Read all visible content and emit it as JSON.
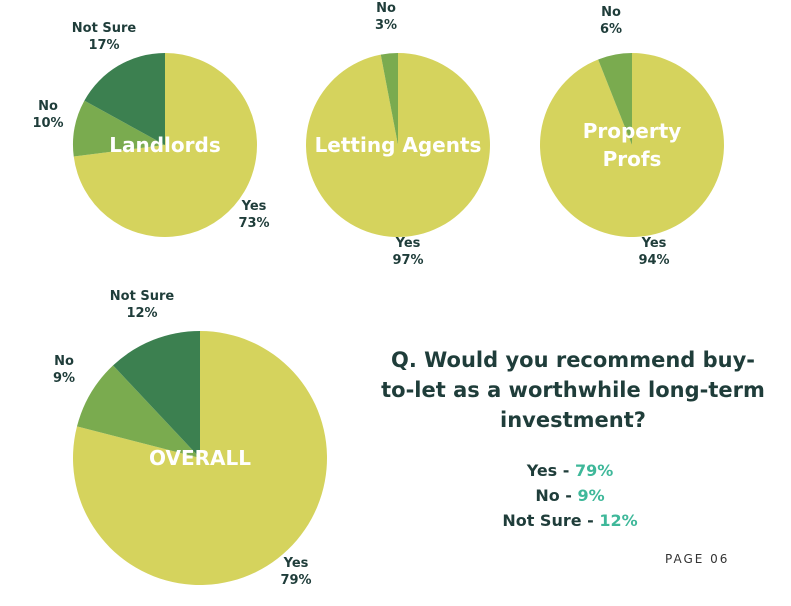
{
  "colors": {
    "yes": "#d5d35d",
    "no": "#7aab4f",
    "not_sure": "#3c8050",
    "text": "#1f3d3a",
    "accent": "#3fb89a"
  },
  "chart_data": [
    {
      "type": "pie",
      "center_label": [
        "Landlords"
      ],
      "slices": [
        {
          "category": "Yes",
          "value": 73,
          "value_label": "73%"
        },
        {
          "category": "No",
          "value": 10,
          "value_label": "10%"
        },
        {
          "category": "Not Sure",
          "value": 17,
          "value_label": "17%"
        }
      ]
    },
    {
      "type": "pie",
      "center_label": [
        "Letting Agents"
      ],
      "slices": [
        {
          "category": "Yes",
          "value": 97,
          "value_label": "97%"
        },
        {
          "category": "No",
          "value": 3,
          "value_label": "3%"
        }
      ]
    },
    {
      "type": "pie",
      "center_label": [
        "Property",
        "Profs"
      ],
      "slices": [
        {
          "category": "Yes",
          "value": 94,
          "value_label": "94%"
        },
        {
          "category": "No",
          "value": 6,
          "value_label": "6%"
        }
      ]
    },
    {
      "type": "pie",
      "center_label": [
        "OVERALL"
      ],
      "slices": [
        {
          "category": "Yes",
          "value": 79,
          "value_label": "79%"
        },
        {
          "category": "No",
          "value": 9,
          "value_label": "9%"
        },
        {
          "category": "Not Sure",
          "value": 12,
          "value_label": "12%"
        }
      ]
    }
  ],
  "question": "Q. Would you recommend buy-to-let as a worthwhile long-term investment?",
  "summary": [
    {
      "label": "Yes - ",
      "value": "79%"
    },
    {
      "label": "No - ",
      "value": "9%"
    },
    {
      "label": "Not Sure - ",
      "value": "12%"
    }
  ],
  "page_label": "PAGE 06"
}
